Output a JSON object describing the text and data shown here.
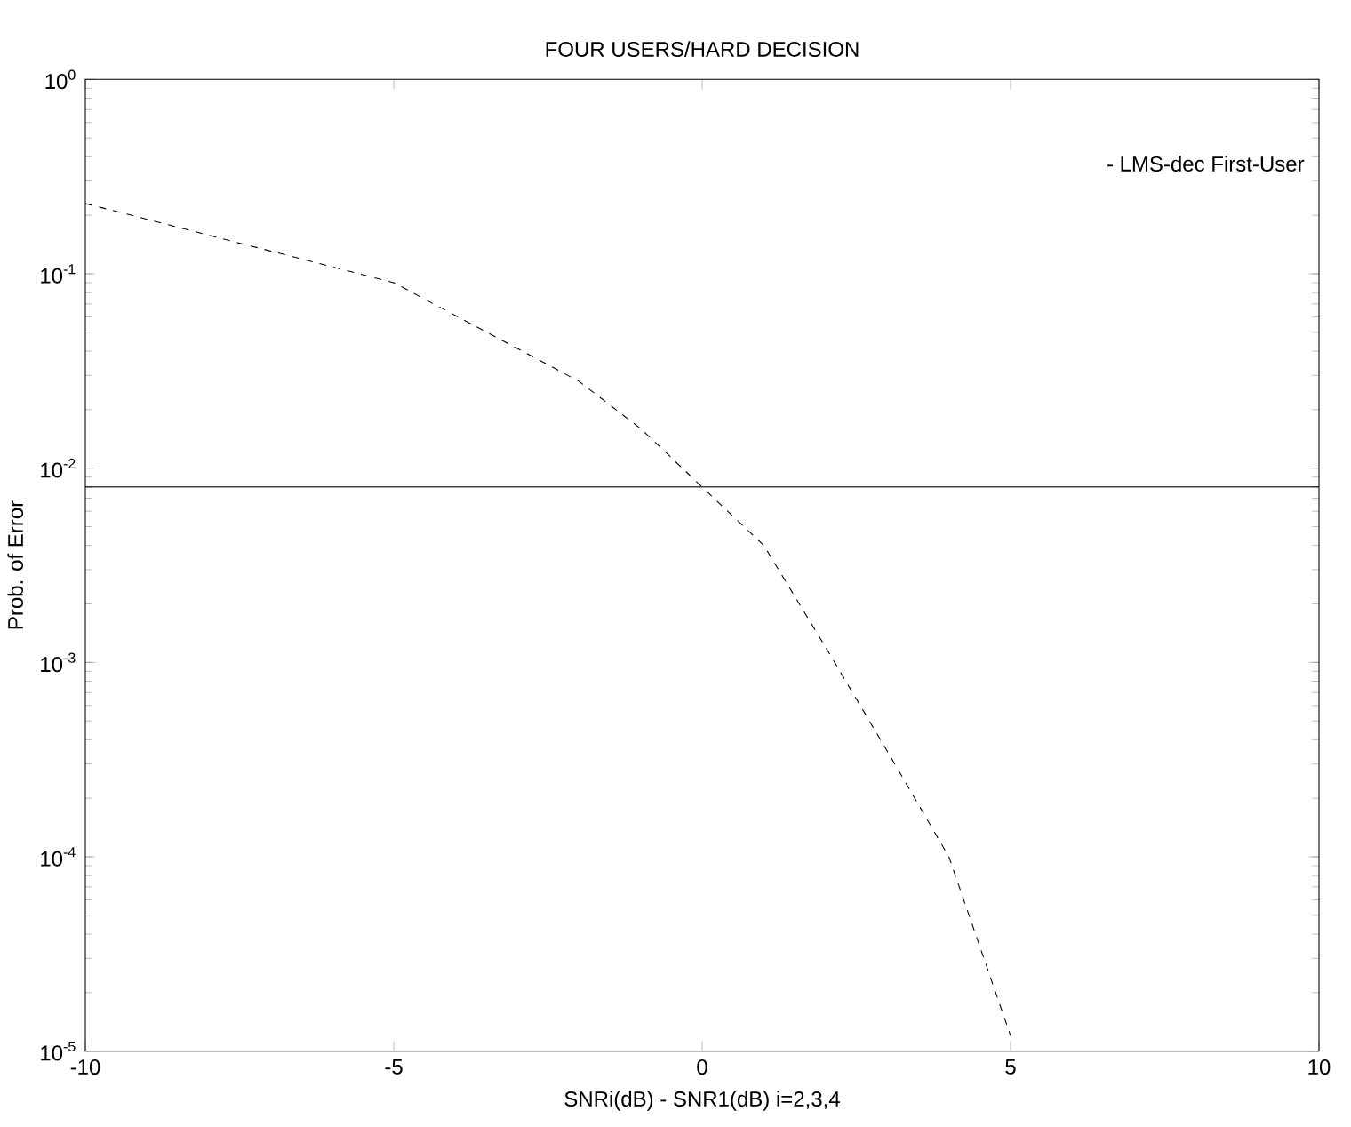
{
  "chart_data": {
    "type": "line",
    "title": "FOUR USERS/HARD DECISION",
    "xlabel": "SNRi(dB) - SNR1(dB)  i=2,3,4",
    "ylabel": "Prob. of Error",
    "annotations": [
      "- LMS-dec First-User"
    ],
    "log": "y",
    "xlim": [
      -10,
      10
    ],
    "ylim": [
      1e-05,
      1
    ],
    "xticks": [
      -10,
      -5,
      0,
      5,
      10
    ],
    "yticks": [
      {
        "value": 1e-05,
        "label": "10$^{-5}$"
      },
      {
        "value": 0.0001,
        "label": "10$^{-4}$"
      },
      {
        "value": 0.001,
        "label": "10$^{-3}$"
      },
      {
        "value": 0.01,
        "label": "10$^{-2}$"
      },
      {
        "value": 0.1,
        "label": "10$^{-1}$"
      },
      {
        "value": 1,
        "label": "10$^{0}$"
      }
    ],
    "series": [
      {
        "color": "#000000",
        "line_style": "dashed",
        "x": [
          -10,
          -5,
          -2,
          -1,
          0,
          1,
          2,
          3,
          4,
          5
        ],
        "values": [
          0.23,
          0.09,
          0.028,
          0.016,
          0.008,
          0.004,
          0.0012,
          0.00035,
          0.0001,
          1.2e-05
        ]
      },
      {
        "color": "#000000",
        "line_style": "solid",
        "x": [
          -10,
          10
        ],
        "values": [
          0.008,
          0.008
        ]
      }
    ]
  }
}
